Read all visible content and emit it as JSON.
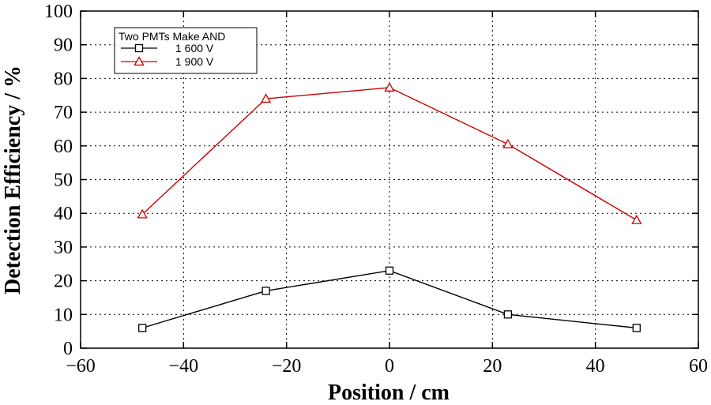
{
  "chart_data": {
    "type": "line",
    "xlabel": "Position / cm",
    "ylabel": "Detection Efficiency / %",
    "xlim": [
      -60,
      60
    ],
    "ylim": [
      0,
      100
    ],
    "x_ticks": [
      -60,
      -40,
      -20,
      0,
      20,
      40,
      60
    ],
    "y_ticks": [
      0,
      10,
      20,
      30,
      40,
      50,
      60,
      70,
      80,
      90,
      100
    ],
    "grid": true,
    "legend": {
      "title": "Two PMTs Make AND",
      "placement": "top-left"
    },
    "series": [
      {
        "name": "1 600 V",
        "color": "#000000",
        "marker": "square",
        "x": [
          -48,
          -24,
          0,
          23,
          48
        ],
        "y": [
          6,
          17,
          23,
          10,
          6
        ]
      },
      {
        "name": "1 900 V",
        "color": "#cc0000",
        "marker": "triangle",
        "x": [
          -48,
          -24,
          0,
          23,
          48
        ],
        "y": [
          39.7,
          74,
          77.3,
          60.5,
          38
        ]
      }
    ]
  }
}
